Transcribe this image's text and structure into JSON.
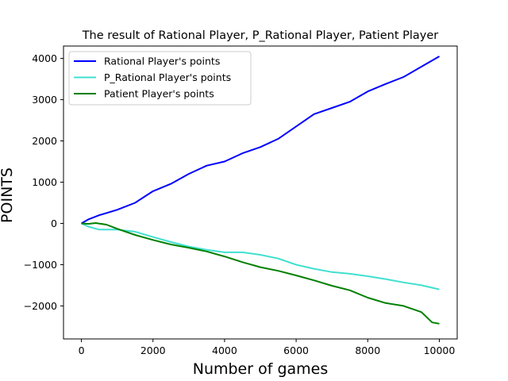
{
  "chart_data": {
    "type": "line",
    "title": "The result of Rational Player, P_Rational Player, Patient Player",
    "xlabel": "Number of games",
    "ylabel": "POINTS",
    "xlim": [
      -500,
      10500
    ],
    "ylim": [
      -2800,
      4300
    ],
    "x_ticks": [
      0,
      2000,
      4000,
      6000,
      8000,
      10000
    ],
    "y_ticks": [
      -2000,
      -1000,
      0,
      1000,
      2000,
      3000,
      4000
    ],
    "x_tick_labels": [
      "0",
      "2000",
      "4000",
      "6000",
      "8000",
      "10000"
    ],
    "y_tick_labels": [
      "−2000",
      "−1000",
      "0",
      "1000",
      "2000",
      "3000",
      "4000"
    ],
    "grid": false,
    "legend_position": "upper-left",
    "series": [
      {
        "name": "Rational Player's points",
        "color": "#0000ff",
        "x": [
          0,
          200,
          500,
          1000,
          1500,
          2000,
          2500,
          3000,
          3500,
          4000,
          4500,
          5000,
          5500,
          6000,
          6500,
          7000,
          7500,
          8000,
          8500,
          9000,
          9500,
          10000
        ],
        "y": [
          0,
          100,
          200,
          330,
          500,
          780,
          960,
          1200,
          1400,
          1500,
          1700,
          1850,
          2050,
          2350,
          2650,
          2800,
          2950,
          3200,
          3380,
          3550,
          3800,
          4050
        ]
      },
      {
        "name": "P_Rational Player's points",
        "color": "#40e0d0",
        "x": [
          0,
          200,
          500,
          1000,
          1500,
          2000,
          2500,
          3000,
          3500,
          4000,
          4500,
          5000,
          5500,
          6000,
          6500,
          7000,
          7500,
          8000,
          8500,
          9000,
          9500,
          10000
        ],
        "y": [
          0,
          -80,
          -150,
          -150,
          -200,
          -330,
          -450,
          -560,
          -640,
          -700,
          -700,
          -760,
          -850,
          -1000,
          -1100,
          -1180,
          -1220,
          -1280,
          -1350,
          -1430,
          -1500,
          -1600
        ]
      },
      {
        "name": "Patient Player's points",
        "color": "#008000",
        "x": [
          0,
          200,
          400,
          700,
          1000,
          1500,
          2000,
          2500,
          3000,
          3500,
          4000,
          4500,
          5000,
          5500,
          6000,
          6500,
          7000,
          7500,
          8000,
          8500,
          9000,
          9500,
          9800,
          10000
        ],
        "y": [
          0,
          -10,
          10,
          -30,
          -130,
          -280,
          -400,
          -510,
          -590,
          -680,
          -800,
          -940,
          -1060,
          -1150,
          -1260,
          -1380,
          -1510,
          -1620,
          -1800,
          -1930,
          -2000,
          -2150,
          -2400,
          -2430
        ]
      }
    ]
  }
}
